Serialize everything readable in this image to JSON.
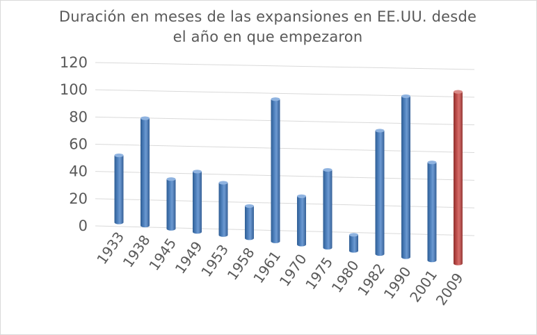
{
  "chart_data": {
    "type": "bar",
    "title_lines": [
      "Duración en meses de las expansiones en EE.UU. desde",
      "el año en que empezaron"
    ],
    "categories": [
      "1933",
      "1938",
      "1945",
      "1949",
      "1953",
      "1958",
      "1961",
      "1970",
      "1975",
      "1980",
      "1982",
      "1990",
      "2001",
      "2009"
    ],
    "values": [
      50,
      80,
      37,
      45,
      39,
      24,
      106,
      36,
      58,
      12,
      92,
      120,
      73,
      128
    ],
    "y_ticks": [
      "0",
      "20",
      "40",
      "60",
      "80",
      "100",
      "120"
    ],
    "ylim": [
      0,
      120
    ],
    "grid": true,
    "style": "3d-cylinder",
    "colors": {
      "default": "#4f81bd",
      "highlight": "#c0504d",
      "grid": "#d9d9d9",
      "text": "#595959"
    },
    "highlight_category": "2009"
  }
}
